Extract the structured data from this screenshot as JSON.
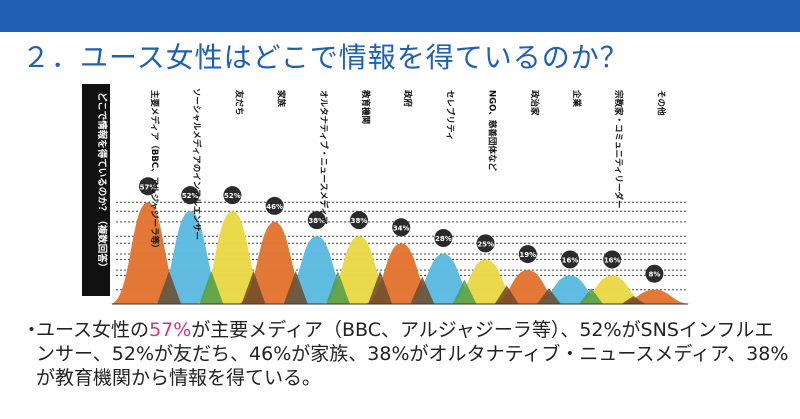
{
  "slide": {
    "title": "２．ユース女性はどこで情報を得ているのか？"
  },
  "colors": {
    "header_bar": "#1f5fb4",
    "title_text": "#1f5fb4",
    "highlight": "#d6338a"
  },
  "chart_data": {
    "type": "area",
    "ylabel": "どこで情報を得ているのか？（複数回答）",
    "categories": [
      "主要メディア（BBC、アルジャジーラ等）",
      "ソーシャルメディアのインフルエンサー",
      "友だち",
      "家族",
      "オルタナティブ・ニュースメディア",
      "教育機関",
      "政府",
      "セレブリティ",
      "NGO、慈善団体など",
      "政治家",
      "企業",
      "宗教家・コミュニティリーダー",
      "その他"
    ],
    "value_labels": [
      "57%",
      "52%",
      "52%",
      "46%",
      "38%",
      "38%",
      "34%",
      "28%",
      "25%",
      "19%",
      "16%",
      "16%",
      "8%"
    ],
    "values": [
      57,
      52,
      52,
      46,
      38,
      38,
      34,
      28,
      25,
      19,
      16,
      16,
      8
    ],
    "ylim": [
      0,
      60
    ],
    "peak_colors": [
      "#e3742f",
      "#5bbbe0",
      "#e8d845",
      "#e3742f",
      "#5bbbe0",
      "#e8d845",
      "#e3742f",
      "#5bbbe0",
      "#e8d845",
      "#e3742f",
      "#5bbbe0",
      "#e8d845",
      "#e3742f"
    ],
    "overlap_colors": [
      "#6f4b2c",
      "#4f9d4a",
      "#6f4b2c",
      "#6f4b2c",
      "#4f9d4a",
      "#6f4b2c",
      "#6f4b2c",
      "#4f9d4a",
      "#6f4b2c",
      "#6f4b2c",
      "#4f9d4a",
      "#6f4b2c"
    ],
    "badge_color": "#2b2b2b",
    "label_panel_color": "#111111"
  },
  "summary": {
    "bullet": "・",
    "part1": "ユース女性の",
    "highlight": "57%",
    "part2": "が主要メディア（BBC、アルジャジーラ等）、52%がSNSインフルエンサー、52%が友だち、46%が家族、38%がオルタナティブ・ニュースメディア、38%が教育機関から情報を得ている。"
  }
}
